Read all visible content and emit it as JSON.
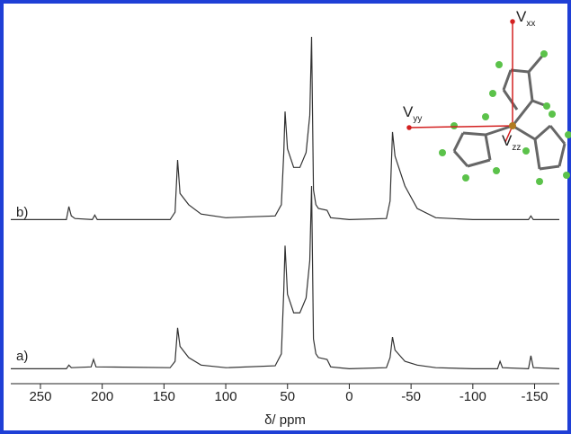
{
  "chart_data": {
    "type": "line",
    "x_label": "δ/ ppm",
    "xlim": [
      274,
      -170
    ],
    "xticks": [
      250,
      200,
      150,
      100,
      50,
      0,
      -50,
      -100,
      -150
    ],
    "ylim": [
      0,
      100
    ],
    "series": [
      {
        "name": "b)",
        "color": "#333333",
        "x": [
          274,
          229,
          227,
          225,
          222,
          208,
          206,
          204,
          145,
          141,
          139,
          137,
          130,
          120,
          100,
          60,
          55,
          53,
          52,
          50,
          45,
          40,
          35,
          32,
          30.5,
          29,
          27,
          25,
          18,
          15,
          0,
          -30,
          -33,
          -35,
          -37,
          -45,
          -55,
          -70,
          -100,
          -145,
          -147,
          -149,
          -170
        ],
        "values": [
          44,
          44,
          47.5,
          45,
          44.3,
          44,
          45.2,
          44,
          44,
          46,
          60,
          51,
          48,
          45.5,
          44.5,
          45,
          48,
          62,
          73,
          63,
          58,
          58,
          62,
          72,
          93,
          52,
          48,
          47,
          46.5,
          44.5,
          44,
          44.3,
          49,
          67.5,
          61,
          53,
          47,
          44.5,
          44,
          44,
          45,
          44,
          44
        ]
      },
      {
        "name": "a)",
        "color": "#333333",
        "x": [
          274,
          229,
          227,
          225,
          209,
          207,
          205,
          145,
          141,
          139,
          137,
          130,
          120,
          100,
          60,
          55,
          53,
          52,
          50,
          45,
          40,
          35,
          32,
          30.5,
          29,
          27,
          25,
          18,
          15,
          0,
          -30,
          -33,
          -35,
          -37,
          -45,
          -55,
          -70,
          -100,
          -120,
          -122,
          -124,
          -145,
          -147,
          -149,
          -170
        ],
        "values": [
          4,
          4,
          5,
          4.3,
          4.5,
          6.5,
          4.5,
          4.3,
          6,
          15,
          10,
          7,
          5,
          4.3,
          4.8,
          8,
          25,
          37,
          24,
          19,
          19,
          23,
          33,
          53,
          12,
          8,
          7,
          6.5,
          4.5,
          4,
          4.3,
          7,
          12.5,
          9,
          6,
          5,
          4.3,
          4,
          4,
          6,
          4.3,
          4,
          7.5,
          4.3,
          4
        ]
      }
    ],
    "annotations": [
      {
        "label": "V",
        "subscript": "xx"
      },
      {
        "label": "V",
        "subscript": "yy"
      },
      {
        "label": "V",
        "subscript": "zz"
      }
    ]
  }
}
